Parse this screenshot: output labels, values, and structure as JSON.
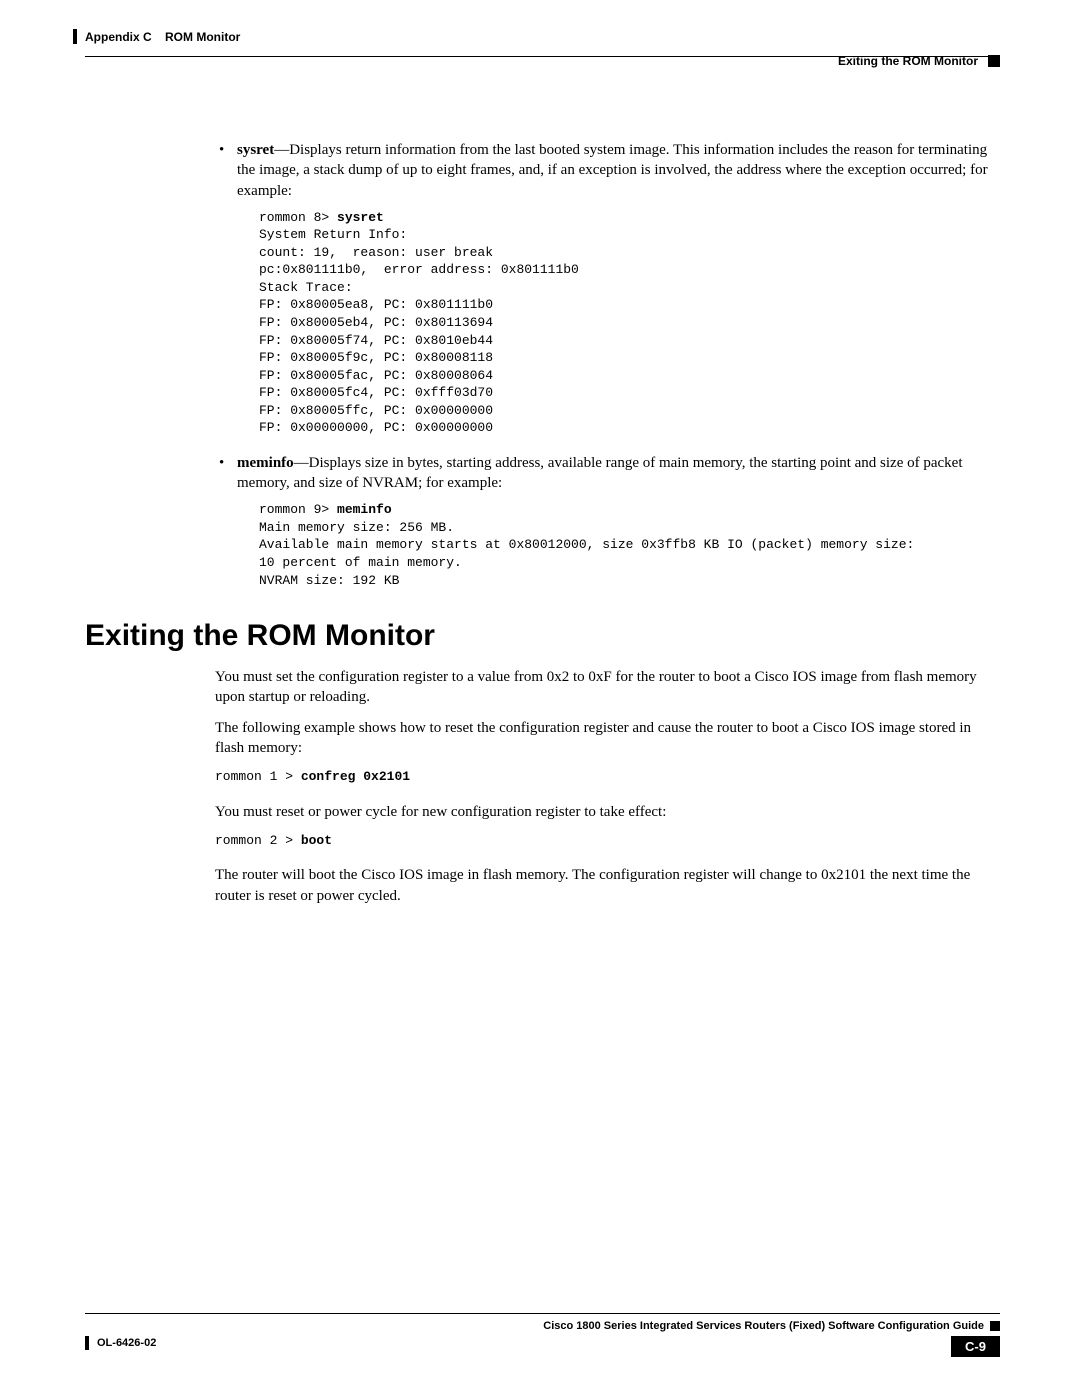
{
  "header": {
    "left_prefix": "Appendix C",
    "left_title": "ROM Monitor",
    "right": "Exiting the ROM Monitor"
  },
  "bullet1": {
    "term": "sysret",
    "desc": "—Displays return information from the last booted system image. This information includes the reason for terminating the image, a stack dump of up to eight frames, and, if an exception is involved, the address where the exception occurred; for example:"
  },
  "code1_prompt": "rommon 8> ",
  "code1_cmd": "sysret",
  "code1_body": "System Return Info:\ncount: 19,  reason: user break\npc:0x801111b0,  error address: 0x801111b0\nStack Trace:\nFP: 0x80005ea8, PC: 0x801111b0\nFP: 0x80005eb4, PC: 0x80113694\nFP: 0x80005f74, PC: 0x8010eb44\nFP: 0x80005f9c, PC: 0x80008118\nFP: 0x80005fac, PC: 0x80008064\nFP: 0x80005fc4, PC: 0xfff03d70\nFP: 0x80005ffc, PC: 0x00000000\nFP: 0x00000000, PC: 0x00000000",
  "bullet2": {
    "term": "meminfo",
    "desc": "—Displays size in bytes, starting address, available range of main memory, the starting point and size of packet memory, and size of NVRAM; for example:"
  },
  "code2_prompt": "rommon 9> ",
  "code2_cmd": "meminfo",
  "code2_body": "Main memory size: 256 MB.\nAvailable main memory starts at 0x80012000, size 0x3ffb8 KB IO (packet) memory size: \n10 percent of main memory.\nNVRAM size: 192 KB",
  "section_title": "Exiting the ROM Monitor",
  "para1": "You must set the configuration register to a value from 0x2 to 0xF for the router to boot a Cisco IOS image from flash memory upon startup or reloading.",
  "para2": "The following example shows how to reset the configuration register and cause the router to boot a Cisco IOS image stored in flash memory:",
  "code3_prompt": "rommon 1 > ",
  "code3_cmd": "confreg 0x2101",
  "para3": "You must reset or power cycle for new configuration register to take effect:",
  "code4_prompt": "rommon 2 > ",
  "code4_cmd": "boot",
  "para4": "The router will boot the Cisco IOS image in flash memory. The configuration register will change to 0x2101 the next time the router is reset or power cycled.",
  "footer": {
    "guide": "Cisco 1800 Series Integrated Services Routers (Fixed) Software Configuration Guide",
    "doc": "OL-6426-02",
    "page": "C-9"
  }
}
